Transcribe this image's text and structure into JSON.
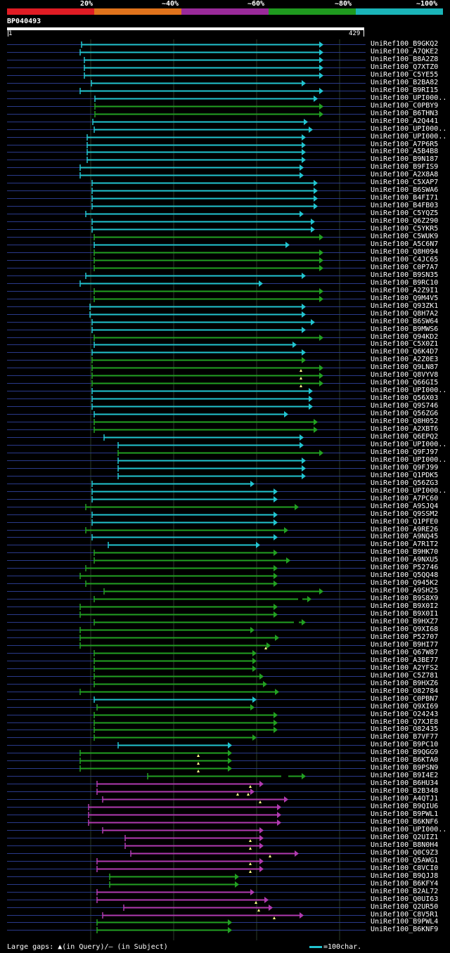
{
  "legend": {
    "labels": [
      "20%",
      "~40%",
      "~60%",
      "~80%",
      "~100%"
    ],
    "colors": [
      "#e01c24",
      "#e0731c",
      "#9a2a9a",
      "#1f9a1f",
      "#1ab4b8"
    ]
  },
  "query": {
    "id": "BP040493",
    "start": "1",
    "end": "429"
  },
  "footer": {
    "gaps_text": "Large gaps: ▲(in Query)/— (in Subject)",
    "scale_text": "=100char."
  },
  "colors": {
    "cyan": "#22c4d0",
    "green": "#22a022",
    "magenta": "#b03ab0",
    "guide": "#2a3a8a",
    "grid": "#2a3a2a"
  },
  "hits": [
    {
      "label": "UniRef100_B9GKQ2",
      "color": "cyan",
      "start": 116,
      "end": 460
    },
    {
      "label": "UniRef100_A7QKE2",
      "color": "cyan",
      "start": 114,
      "end": 460
    },
    {
      "label": "UniRef100_B8A2Z8",
      "color": "cyan",
      "start": 120,
      "end": 460
    },
    {
      "label": "UniRef100_Q7XTZ0",
      "color": "cyan",
      "start": 120,
      "end": 460
    },
    {
      "label": "UniRef100_C5YE55",
      "color": "cyan",
      "start": 120,
      "end": 460
    },
    {
      "label": "UniRef100_B2BA82",
      "color": "cyan",
      "start": 130,
      "end": 435
    },
    {
      "label": "UniRef100_B9RI15",
      "color": "cyan",
      "start": 114,
      "end": 460
    },
    {
      "label": "UniRef100_UPI000..",
      "color": "cyan",
      "start": 135,
      "end": 452
    },
    {
      "label": "UniRef100_C0PBY9",
      "color": "green",
      "start": 135,
      "end": 460
    },
    {
      "label": "UniRef100_B6THN3",
      "color": "green",
      "start": 135,
      "end": 460
    },
    {
      "label": "UniRef100_A2Q441",
      "color": "cyan",
      "start": 132,
      "end": 438
    },
    {
      "label": "UniRef100_UPI000..",
      "color": "cyan",
      "start": 134,
      "end": 445
    },
    {
      "label": "UniRef100_UPI000..",
      "color": "cyan",
      "start": 124,
      "end": 435
    },
    {
      "label": "UniRef100_A7P6R5",
      "color": "cyan",
      "start": 124,
      "end": 435
    },
    {
      "label": "UniRef100_A5B4B8",
      "color": "cyan",
      "start": 124,
      "end": 435
    },
    {
      "label": "UniRef100_B9N187",
      "color": "cyan",
      "start": 124,
      "end": 435
    },
    {
      "label": "UniRef100_B9FIS9",
      "color": "cyan",
      "start": 114,
      "end": 432
    },
    {
      "label": "UniRef100_A2X8A8",
      "color": "cyan",
      "start": 114,
      "end": 432
    },
    {
      "label": "UniRef100_C5XAP7",
      "color": "cyan",
      "start": 131,
      "end": 452
    },
    {
      "label": "UniRef100_B6SWA6",
      "color": "cyan",
      "start": 131,
      "end": 452
    },
    {
      "label": "UniRef100_B4FI71",
      "color": "cyan",
      "start": 131,
      "end": 452
    },
    {
      "label": "UniRef100_B4FB03",
      "color": "cyan",
      "start": 131,
      "end": 452
    },
    {
      "label": "UniRef100_C5YQZ5",
      "color": "cyan",
      "start": 122,
      "end": 432
    },
    {
      "label": "UniRef100_Q6Z290",
      "color": "cyan",
      "start": 131,
      "end": 448
    },
    {
      "label": "UniRef100_C5YKR5",
      "color": "cyan",
      "start": 131,
      "end": 448
    },
    {
      "label": "UniRef100_C5WUK9",
      "color": "green",
      "start": 134,
      "end": 460
    },
    {
      "label": "UniRef100_A5C6N7",
      "color": "cyan",
      "start": 134,
      "end": 412
    },
    {
      "label": "UniRef100_Q8H094",
      "color": "green",
      "start": 134,
      "end": 460
    },
    {
      "label": "UniRef100_C4JC65",
      "color": "green",
      "start": 134,
      "end": 460
    },
    {
      "label": "UniRef100_C0P7A7",
      "color": "green",
      "start": 134,
      "end": 460
    },
    {
      "label": "UniRef100_B9SN35",
      "color": "cyan",
      "start": 122,
      "end": 435
    },
    {
      "label": "UniRef100_B9RC10",
      "color": "cyan",
      "start": 114,
      "end": 374
    },
    {
      "label": "UniRef100_A2Z9I1",
      "color": "green",
      "start": 134,
      "end": 460
    },
    {
      "label": "UniRef100_Q9M4V5",
      "color": "green",
      "start": 134,
      "end": 460
    },
    {
      "label": "UniRef100_Q93ZK1",
      "color": "cyan",
      "start": 128,
      "end": 435
    },
    {
      "label": "UniRef100_Q8H7A2",
      "color": "cyan",
      "start": 128,
      "end": 435
    },
    {
      "label": "UniRef100_B6SW64",
      "color": "cyan",
      "start": 131,
      "end": 448
    },
    {
      "label": "UniRef100_B9MWS6",
      "color": "cyan",
      "start": 131,
      "end": 435
    },
    {
      "label": "UniRef100_Q94KD2",
      "color": "green",
      "start": 134,
      "end": 460
    },
    {
      "label": "UniRef100_C5X0Z1",
      "color": "cyan",
      "start": 134,
      "end": 422
    },
    {
      "label": "UniRef100_Q6K4D7",
      "color": "cyan",
      "start": 131,
      "end": 435
    },
    {
      "label": "UniRef100_A2Z0E3",
      "color": "green",
      "start": 131,
      "end": 435
    },
    {
      "label": "UniRef100_Q9LN87",
      "color": "green",
      "start": 131,
      "end": 460,
      "gaps": [
        428
      ]
    },
    {
      "label": "UniRef100_Q8VYV8",
      "color": "green",
      "start": 131,
      "end": 460,
      "gaps": [
        428
      ]
    },
    {
      "label": "UniRef100_Q66GI5",
      "color": "green",
      "start": 131,
      "end": 460,
      "gaps": [
        428
      ]
    },
    {
      "label": "UniRef100_UPI000..",
      "color": "cyan",
      "start": 131,
      "end": 445
    },
    {
      "label": "UniRef100_Q56X03",
      "color": "cyan",
      "start": 131,
      "end": 445
    },
    {
      "label": "UniRef100_Q9S746",
      "color": "cyan",
      "start": 131,
      "end": 445
    },
    {
      "label": "UniRef100_Q56ZG6",
      "color": "cyan",
      "start": 134,
      "end": 410
    },
    {
      "label": "UniRef100_Q8H052",
      "color": "green",
      "start": 134,
      "end": 452
    },
    {
      "label": "UniRef100_A2XBT6",
      "color": "green",
      "start": 134,
      "end": 452
    },
    {
      "label": "UniRef100_Q6EPQ2",
      "color": "cyan",
      "start": 148,
      "end": 432
    },
    {
      "label": "UniRef100_UPI000..",
      "color": "cyan",
      "start": 168,
      "end": 432
    },
    {
      "label": "UniRef100_Q9FJ97",
      "color": "green",
      "start": 168,
      "end": 460
    },
    {
      "label": "UniRef100_UPI000..",
      "color": "cyan",
      "start": 168,
      "end": 435
    },
    {
      "label": "UniRef100_Q9FJ99",
      "color": "cyan",
      "start": 168,
      "end": 435
    },
    {
      "label": "UniRef100_Q1PDK5",
      "color": "cyan",
      "start": 168,
      "end": 435
    },
    {
      "label": "UniRef100_Q56ZG3",
      "color": "cyan",
      "start": 131,
      "end": 362
    },
    {
      "label": "UniRef100_UPI000..",
      "color": "cyan",
      "start": 131,
      "end": 395
    },
    {
      "label": "UniRef100_A7PC60",
      "color": "cyan",
      "start": 131,
      "end": 395
    },
    {
      "label": "UniRef100_A9SJQ4",
      "color": "green",
      "start": 122,
      "end": 425
    },
    {
      "label": "UniRef100_Q9SSM2",
      "color": "cyan",
      "start": 131,
      "end": 395
    },
    {
      "label": "UniRef100_Q1PFE0",
      "color": "cyan",
      "start": 131,
      "end": 395
    },
    {
      "label": "UniRef100_A9RE26",
      "color": "green",
      "start": 122,
      "end": 410
    },
    {
      "label": "UniRef100_A9NQ45",
      "color": "cyan",
      "start": 131,
      "end": 395
    },
    {
      "label": "UniRef100_A7R1T2",
      "color": "cyan",
      "start": 154,
      "end": 370
    },
    {
      "label": "UniRef100_B9HK70",
      "color": "green",
      "start": 134,
      "end": 395
    },
    {
      "label": "UniRef100_A9NXU5",
      "color": "green",
      "start": 134,
      "end": 413
    },
    {
      "label": "UniRef100_P52746",
      "color": "green",
      "start": 122,
      "end": 395
    },
    {
      "label": "UniRef100_Q5QQ48",
      "color": "green",
      "start": 114,
      "end": 395
    },
    {
      "label": "UniRef100_Q945K2",
      "color": "green",
      "start": 122,
      "end": 395
    },
    {
      "label": "UniRef100_A9SH25",
      "color": "green",
      "start": 148,
      "end": 460
    },
    {
      "label": "UniRef100_B9S8X9",
      "color": "green",
      "start": 134,
      "end": 443,
      "subjgap": [
        424,
        430
      ]
    },
    {
      "label": "UniRef100_B9X0I2",
      "color": "green",
      "start": 114,
      "end": 395
    },
    {
      "label": "UniRef100_B9X0I1",
      "color": "green",
      "start": 114,
      "end": 395
    },
    {
      "label": "UniRef100_B9HXZ7",
      "color": "green",
      "start": 134,
      "end": 435,
      "subjgap": [
        418,
        425
      ]
    },
    {
      "label": "UniRef100_Q9XI68",
      "color": "green",
      "start": 114,
      "end": 362
    },
    {
      "label": "UniRef100_P52707",
      "color": "green",
      "start": 114,
      "end": 397
    },
    {
      "label": "UniRef100_B9HI77",
      "color": "green",
      "start": 114,
      "end": 385,
      "gaps": [
        378
      ]
    },
    {
      "label": "UniRef100_Q67W87",
      "color": "green",
      "start": 134,
      "end": 365
    },
    {
      "label": "UniRef100_A3BE77",
      "color": "green",
      "start": 134,
      "end": 365
    },
    {
      "label": "UniRef100_A2YFS2",
      "color": "green",
      "start": 134,
      "end": 365
    },
    {
      "label": "UniRef100_C5Z781",
      "color": "green",
      "start": 134,
      "end": 375
    },
    {
      "label": "UniRef100_B9HXZ6",
      "color": "green",
      "start": 134,
      "end": 380
    },
    {
      "label": "UniRef100_O82784",
      "color": "green",
      "start": 114,
      "end": 397
    },
    {
      "label": "UniRef100_C0PBN7",
      "color": "cyan",
      "start": 134,
      "end": 365
    },
    {
      "label": "UniRef100_Q9XI69",
      "color": "green",
      "start": 138,
      "end": 362
    },
    {
      "label": "UniRef100_O24243",
      "color": "green",
      "start": 134,
      "end": 395
    },
    {
      "label": "UniRef100_Q7XJE8",
      "color": "green",
      "start": 134,
      "end": 395
    },
    {
      "label": "UniRef100_O82435",
      "color": "green",
      "start": 134,
      "end": 395
    },
    {
      "label": "UniRef100_B7VF77",
      "color": "green",
      "start": 134,
      "end": 365
    },
    {
      "label": "UniRef100_B9PC10",
      "color": "cyan",
      "start": 168,
      "end": 330
    },
    {
      "label": "UniRef100_B9QGG9",
      "color": "green",
      "start": 114,
      "end": 330,
      "gaps": [
        282
      ]
    },
    {
      "label": "UniRef100_B6KTA0",
      "color": "green",
      "start": 114,
      "end": 330,
      "gaps": [
        282
      ]
    },
    {
      "label": "UniRef100_B9PSN9",
      "color": "green",
      "start": 114,
      "end": 330,
      "gaps": [
        282
      ]
    },
    {
      "label": "UniRef100_B9I4E2",
      "color": "green",
      "start": 210,
      "end": 435,
      "subjgap": [
        400,
        410
      ]
    },
    {
      "label": "UniRef100_B6HU34",
      "color": "magenta",
      "start": 138,
      "end": 375,
      "gaps": [
        356
      ]
    },
    {
      "label": "UniRef100_B2B348",
      "color": "magenta",
      "start": 138,
      "end": 362,
      "gaps": [
        338,
        353
      ]
    },
    {
      "label": "UniRef100_A4QTJ1",
      "color": "magenta",
      "start": 146,
      "end": 410,
      "gaps": [
        370
      ]
    },
    {
      "label": "UniRef100_B9QIU6",
      "color": "magenta",
      "start": 126,
      "end": 400
    },
    {
      "label": "UniRef100_B9PWL1",
      "color": "magenta",
      "start": 126,
      "end": 400
    },
    {
      "label": "UniRef100_B6KNF6",
      "color": "magenta",
      "start": 126,
      "end": 400
    },
    {
      "label": "UniRef100_UPI000..",
      "color": "magenta",
      "start": 146,
      "end": 375
    },
    {
      "label": "UniRef100_Q2UIZ1",
      "color": "magenta",
      "start": 178,
      "end": 375,
      "gaps": [
        356
      ]
    },
    {
      "label": "UniRef100_B8N0H4",
      "color": "magenta",
      "start": 178,
      "end": 375,
      "gaps": [
        356
      ]
    },
    {
      "label": "UniRef100_Q0C9Z3",
      "color": "magenta",
      "start": 186,
      "end": 425,
      "gaps": [
        384
      ]
    },
    {
      "label": "UniRef100_Q5AWG1",
      "color": "magenta",
      "start": 138,
      "end": 375,
      "gaps": [
        356
      ]
    },
    {
      "label": "UniRef100_C8VCI0",
      "color": "magenta",
      "start": 138,
      "end": 375,
      "gaps": [
        356
      ]
    },
    {
      "label": "UniRef100_B9QJJ8",
      "color": "green",
      "start": 156,
      "end": 340
    },
    {
      "label": "UniRef100_B6KFY4",
      "color": "green",
      "start": 156,
      "end": 340
    },
    {
      "label": "UniRef100_B2AL72",
      "color": "magenta",
      "start": 138,
      "end": 362
    },
    {
      "label": "UniRef100_Q0UI63",
      "color": "magenta",
      "start": 138,
      "end": 382,
      "gaps": [
        364
      ]
    },
    {
      "label": "UniRef100_Q2UR50",
      "color": "magenta",
      "start": 176,
      "end": 388,
      "gaps": [
        368
      ]
    },
    {
      "label": "UniRef100_C8V5R1",
      "color": "magenta",
      "start": 146,
      "end": 432,
      "gaps": [
        390
      ]
    },
    {
      "label": "UniRef100_B9PWL4",
      "color": "green",
      "start": 138,
      "end": 330
    },
    {
      "label": "UniRef100_B6KNF9",
      "color": "green",
      "start": 138,
      "end": 330
    }
  ]
}
